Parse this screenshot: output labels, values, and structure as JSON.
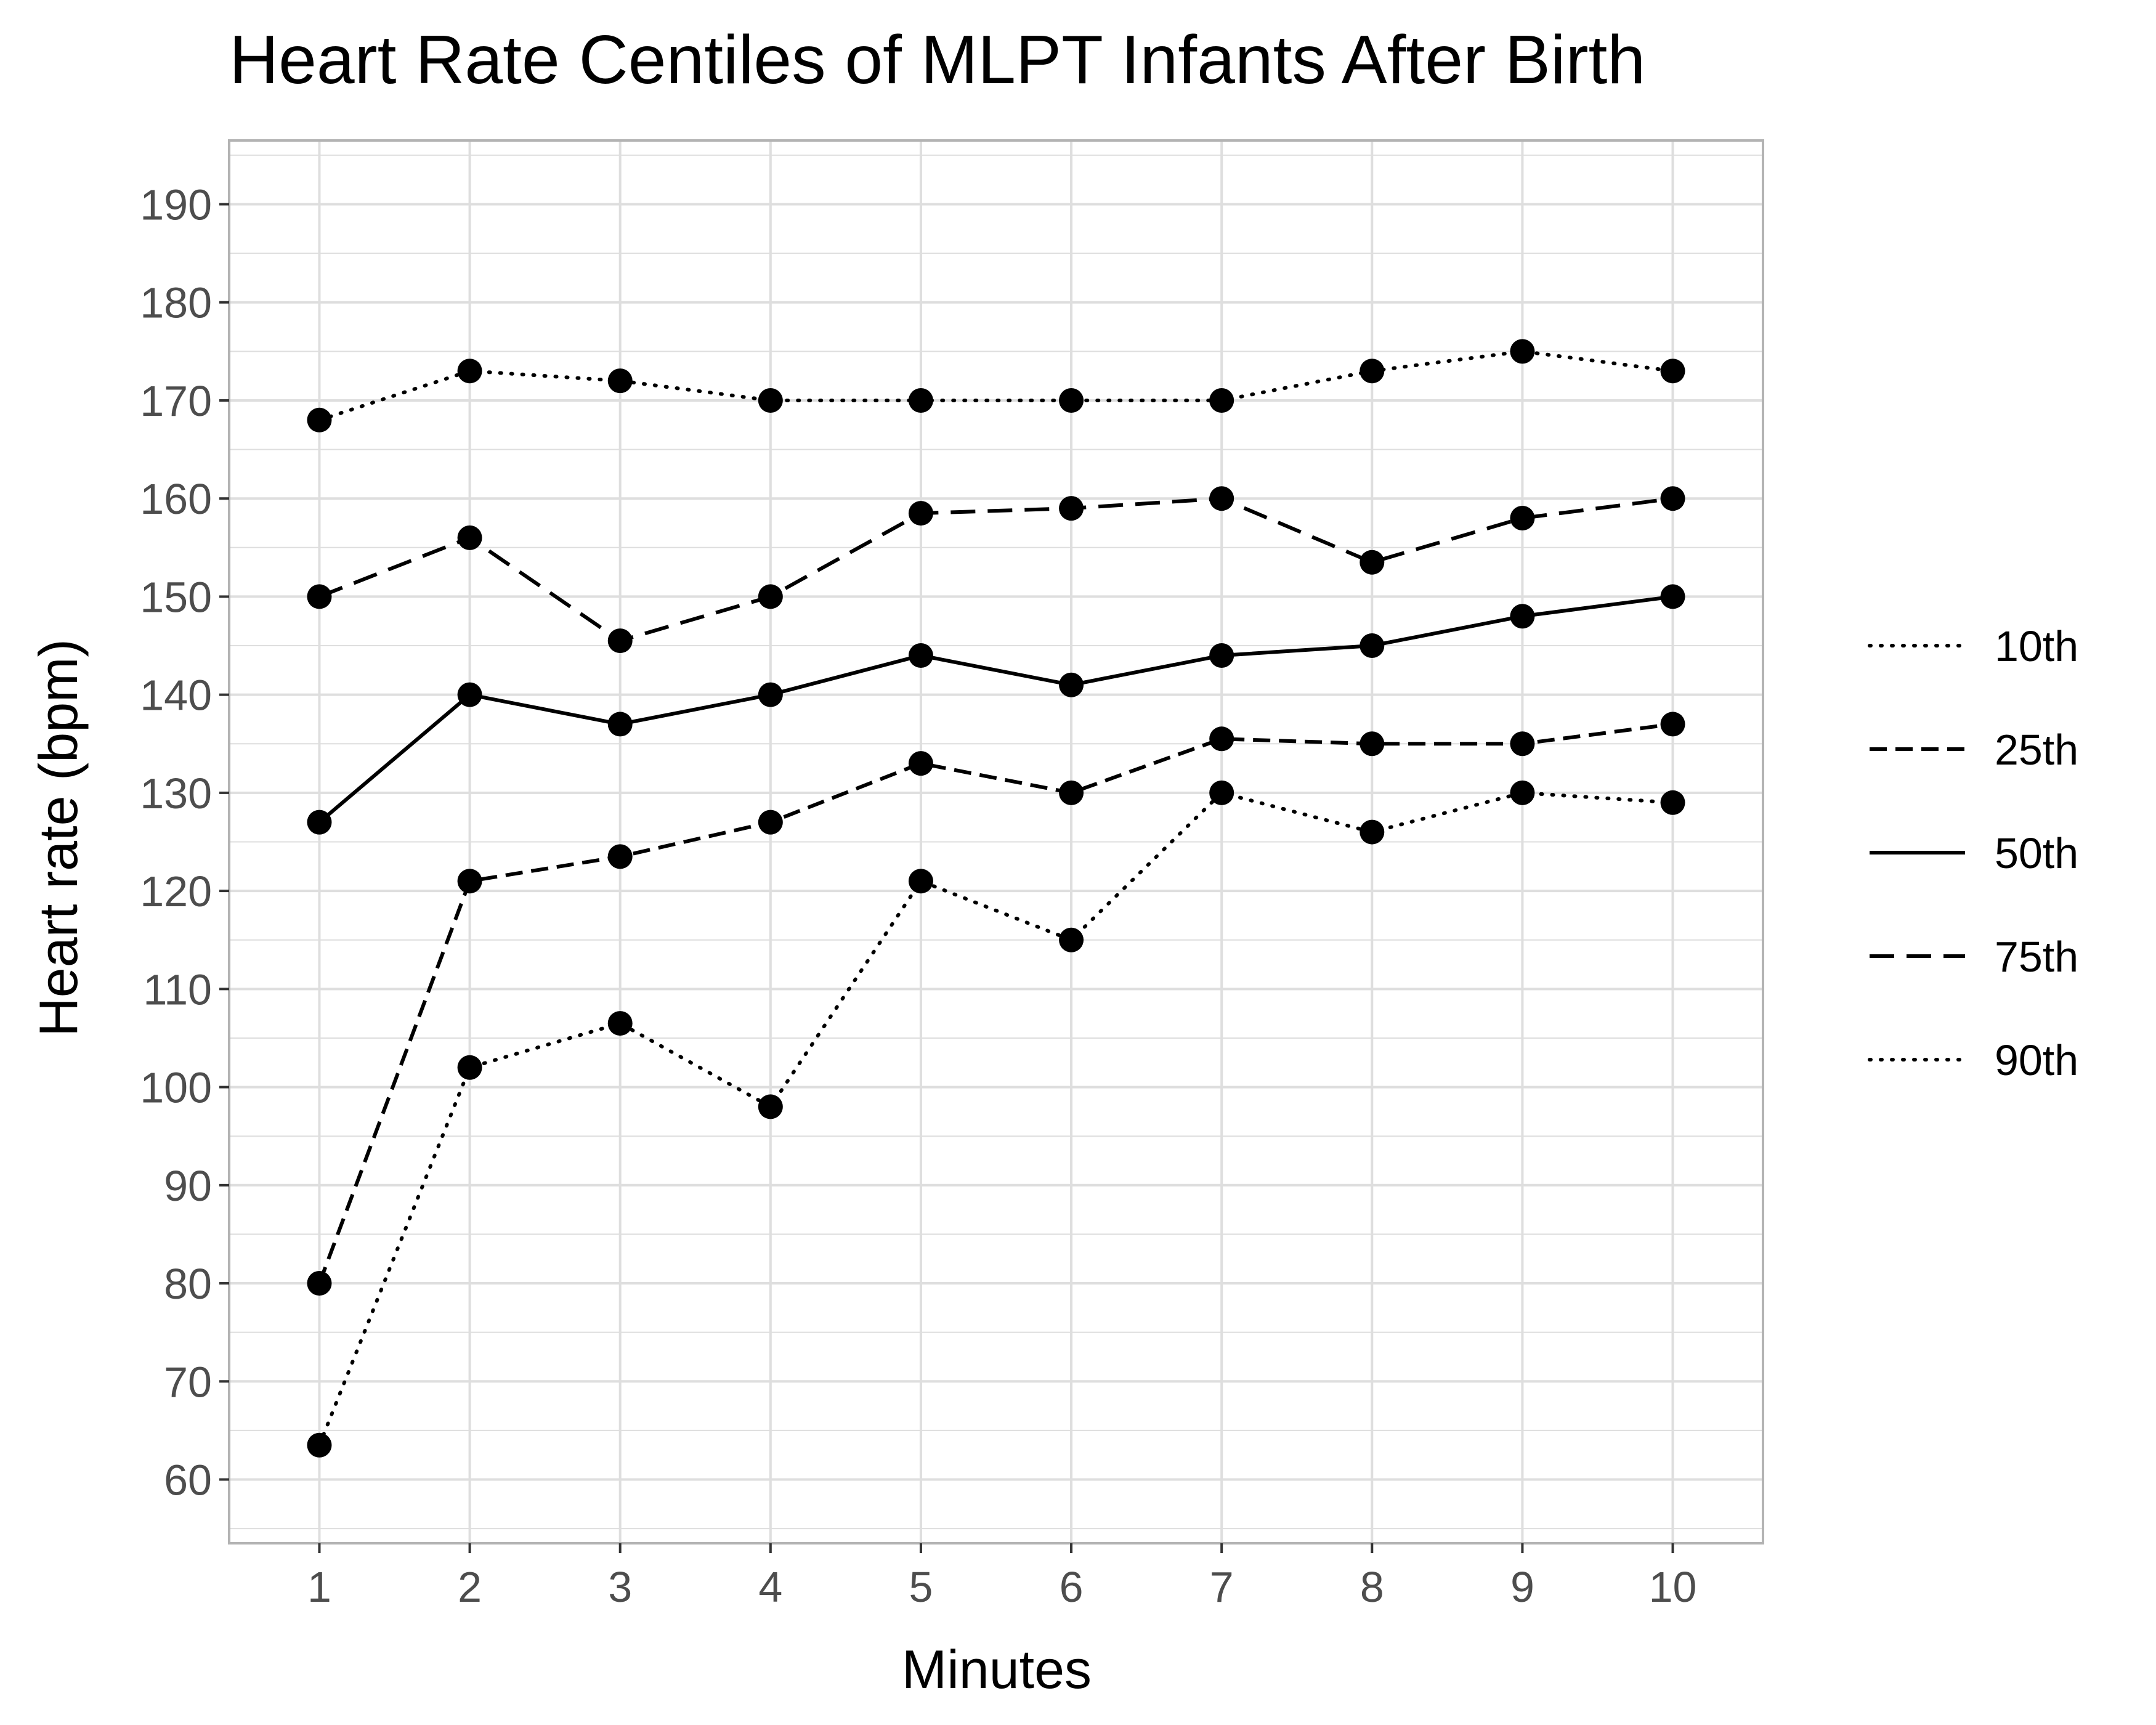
{
  "chart_data": {
    "type": "line",
    "title": "Heart Rate Centiles of MLPT Infants After Birth",
    "xlabel": "Minutes",
    "ylabel": "Heart rate (bpm)",
    "x": [
      1,
      2,
      3,
      4,
      5,
      6,
      7,
      8,
      9,
      10
    ],
    "xlim": [
      0.4,
      10.6
    ],
    "ylim": [
      53.5,
      196.5
    ],
    "xticks": [
      1,
      2,
      3,
      4,
      5,
      6,
      7,
      8,
      9,
      10
    ],
    "yticks": [
      60,
      70,
      80,
      90,
      100,
      110,
      120,
      130,
      140,
      150,
      160,
      170,
      180,
      190
    ],
    "grid": true,
    "legend_position": "right",
    "series": [
      {
        "name": "10th",
        "line_style": "dotted",
        "values": [
          63.5,
          102,
          106.5,
          98,
          121,
          115,
          130,
          126,
          130,
          129
        ]
      },
      {
        "name": "25th",
        "line_style": "dashed",
        "values": [
          80,
          121,
          123.5,
          127,
          133,
          130,
          135.5,
          135,
          135,
          137
        ]
      },
      {
        "name": "50th",
        "line_style": "solid",
        "values": [
          127,
          140,
          137,
          140,
          144,
          141,
          144,
          145,
          148,
          150
        ]
      },
      {
        "name": "75th",
        "line_style": "longdash",
        "values": [
          150,
          156,
          145.5,
          150,
          158.5,
          159,
          160,
          153.5,
          158,
          160
        ]
      },
      {
        "name": "90th",
        "line_style": "dotted",
        "values": [
          168,
          173,
          172,
          170,
          170,
          170,
          170,
          173,
          175,
          173
        ]
      }
    ],
    "colors": {
      "line": "#000000",
      "grid": "#dedede",
      "panel_border": "#b3b3b3",
      "tick_label": "#4d4d4d"
    }
  }
}
